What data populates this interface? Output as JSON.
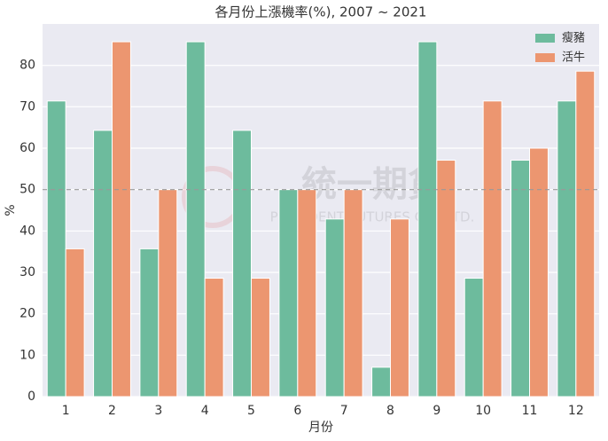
{
  "chart_data": {
    "type": "bar",
    "title": "各月份上漲機率(%), 2007 ~ 2021",
    "x_label": "月份",
    "y_label": "%",
    "categories": [
      "1",
      "2",
      "3",
      "4",
      "5",
      "6",
      "7",
      "8",
      "9",
      "10",
      "11",
      "12"
    ],
    "series": [
      {
        "name": "瘦豬",
        "color": "#6dbb9d",
        "values": [
          71.4,
          64.3,
          35.7,
          85.7,
          64.3,
          50,
          42.9,
          7.1,
          85.7,
          28.6,
          57.1,
          71.4
        ]
      },
      {
        "name": "活牛",
        "color": "#ec9670",
        "values": [
          35.7,
          85.7,
          50,
          28.6,
          28.6,
          50,
          50,
          42.9,
          57.1,
          71.4,
          60,
          78.6
        ]
      }
    ],
    "ylim": [
      0,
      90
    ],
    "yticks": [
      0,
      10,
      20,
      30,
      40,
      50,
      60,
      70,
      80
    ],
    "grid": true,
    "legend": "upper right",
    "reference_line": 50,
    "watermark": [
      "統一期貨",
      "PRESIDENT FUTURES CO., LTD."
    ]
  }
}
